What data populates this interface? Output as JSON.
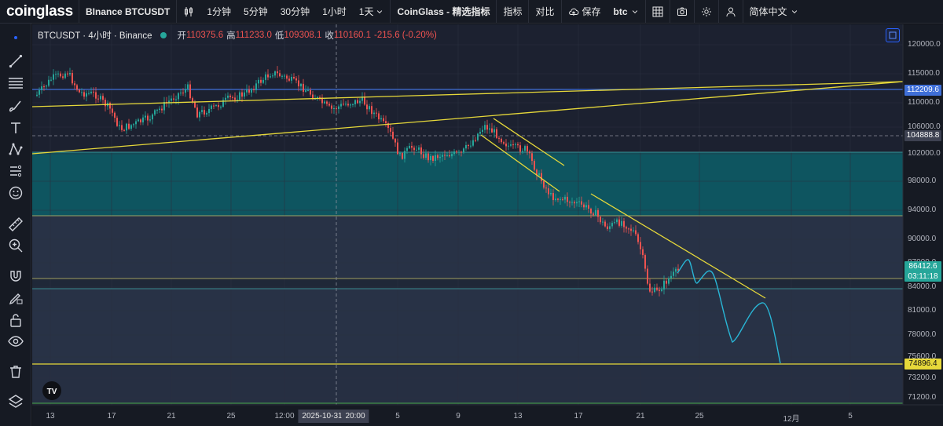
{
  "app": {
    "logo": "coinglass"
  },
  "toolbar": {
    "symbol": "BInance BTCUSDT",
    "intervals": [
      "1分钟",
      "5分钟",
      "30分钟",
      "1小时",
      "1天"
    ],
    "indicator_source": "CoinGlass - 精选指标",
    "indicators": "指标",
    "compare": "对比",
    "save": "保存",
    "layout_name": "btc",
    "language": "简体中文"
  },
  "legend": {
    "symbol": "BTCUSDT · 4小时 · Binance",
    "open_label": "开",
    "open": "110375.6",
    "high_label": "高",
    "high": "111233.0",
    "low_label": "低",
    "low": "109308.1",
    "close_label": "收",
    "close": "110160.1",
    "change": "-215.6 (-0.20%)"
  },
  "price_axis": {
    "ticks": [
      {
        "label": "120000.0",
        "value": 120000
      },
      {
        "label": "115000.0",
        "value": 115000
      },
      {
        "label": "110000.0",
        "value": 110000
      },
      {
        "label": "106000.0",
        "value": 106000
      },
      {
        "label": "102000.0",
        "value": 102000
      },
      {
        "label": "98000.0",
        "value": 98000
      },
      {
        "label": "94000.0",
        "value": 94000
      },
      {
        "label": "90000.0",
        "value": 90000
      },
      {
        "label": "87000.0",
        "value": 87000
      },
      {
        "label": "84000.0",
        "value": 84000
      },
      {
        "label": "81000.0",
        "value": 81000
      },
      {
        "label": "78000.0",
        "value": 78000
      },
      {
        "label": "75600.0",
        "value": 75600
      },
      {
        "label": "73200.0",
        "value": 73200
      },
      {
        "label": "71200.0",
        "value": 71200
      }
    ],
    "tags": {
      "level_high": "112209.6",
      "crosshair": "104888.8",
      "last_price": "86412.6",
      "countdown": "03:11:18",
      "level_low": "74896.4"
    }
  },
  "time_axis": {
    "labels": [
      "13",
      "17",
      "21",
      "25",
      "12:00",
      "5",
      "9",
      "13",
      "17",
      "21",
      "25",
      "12月",
      "5"
    ],
    "crosshair_date": "2025-10-31",
    "crosshair_time": "20:00"
  },
  "colors": {
    "up": "#26a69a",
    "down": "#ef5350",
    "trendline": "#e6d83a",
    "level": "#3f6fd8",
    "projection": "#29b6d6",
    "zone": "#0e5560"
  },
  "icons": {
    "sidebar": [
      "crosshair-icon",
      "trendline-icon",
      "fib-icon",
      "brush-icon",
      "text-icon",
      "pattern-icon",
      "prediction-icon",
      "emoji-icon",
      "ruler-icon",
      "zoom-icon",
      "magnet-icon",
      "lock-draw-icon",
      "lock-icon",
      "eye-icon",
      "trash-icon",
      "layers-icon"
    ]
  }
}
